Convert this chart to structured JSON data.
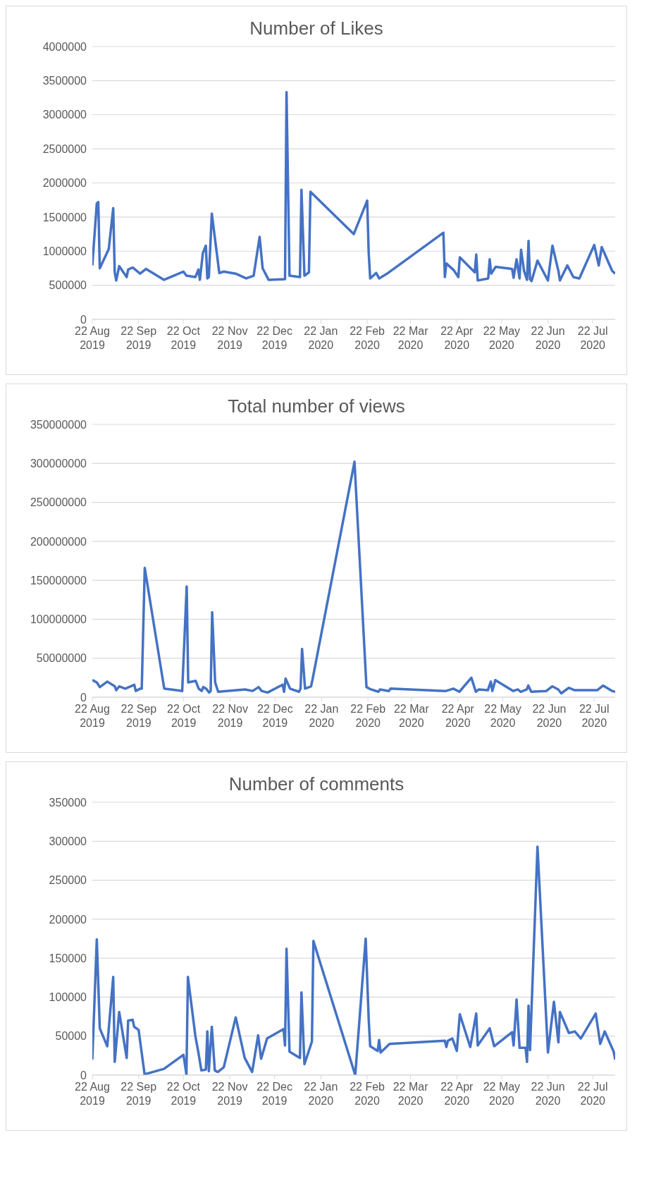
{
  "chart_data": [
    {
      "type": "line",
      "title": "Number of Likes",
      "grid": "y",
      "marker": "none",
      "line_style": "solid",
      "xlim": [
        "2019-08-22",
        "2020-08-06"
      ],
      "xticks": [
        {
          "value": "2019-08-22",
          "label": "22 Aug 2019"
        },
        {
          "value": "2019-09-22",
          "label": "22 Sep 2019"
        },
        {
          "value": "2019-10-22",
          "label": "22 Oct 2019"
        },
        {
          "value": "2019-11-22",
          "label": "22 Nov 2019"
        },
        {
          "value": "2019-12-22",
          "label": "22 Dec 2019"
        },
        {
          "value": "2020-01-22",
          "label": "22 Jan 2020"
        },
        {
          "value": "2020-02-22",
          "label": "22 Feb 2020"
        },
        {
          "value": "2020-03-22",
          "label": "22 Mar 2020"
        },
        {
          "value": "2020-04-22",
          "label": "22 Apr 2020"
        },
        {
          "value": "2020-05-22",
          "label": "22 May 2020"
        },
        {
          "value": "2020-06-22",
          "label": "22 Jun 2020"
        },
        {
          "value": "2020-07-22",
          "label": "22 Jul 2020"
        }
      ],
      "ylim": [
        0,
        4000000
      ],
      "yticks": [
        0,
        500000,
        1000000,
        1500000,
        2000000,
        2500000,
        3000000,
        3500000,
        4000000
      ],
      "x": [
        "2019-08-22",
        "2019-08-25",
        "2019-08-26",
        "2019-08-27",
        "2019-09-02",
        "2019-09-05",
        "2019-09-06",
        "2019-09-07",
        "2019-09-09",
        "2019-09-14",
        "2019-09-15",
        "2019-09-18",
        "2019-09-23",
        "2019-09-27",
        "2019-10-09",
        "2019-10-22",
        "2019-10-24",
        "2019-10-30",
        "2019-11-01",
        "2019-11-02",
        "2019-11-04",
        "2019-11-06",
        "2019-11-07",
        "2019-11-08",
        "2019-11-10",
        "2019-11-15",
        "2019-11-18",
        "2019-11-26",
        "2019-12-03",
        "2019-12-08",
        "2019-12-12",
        "2019-12-14",
        "2019-12-18",
        "2019-12-29",
        "2019-12-30",
        "2020-01-01",
        "2020-01-08",
        "2020-01-09",
        "2020-01-11",
        "2020-01-14",
        "2020-01-15",
        "2020-02-13",
        "2020-02-22",
        "2020-02-23",
        "2020-02-24",
        "2020-02-28",
        "2020-03-01",
        "2020-03-07",
        "2020-04-13",
        "2020-04-14",
        "2020-04-15",
        "2020-04-20",
        "2020-04-23",
        "2020-04-24",
        "2020-05-04",
        "2020-05-05",
        "2020-05-06",
        "2020-05-13",
        "2020-05-14",
        "2020-05-15",
        "2020-05-18",
        "2020-05-29",
        "2020-05-30",
        "2020-06-01",
        "2020-06-03",
        "2020-06-04",
        "2020-06-06",
        "2020-06-08",
        "2020-06-09",
        "2020-06-10",
        "2020-06-11",
        "2020-06-15",
        "2020-06-22",
        "2020-06-25",
        "2020-06-29",
        "2020-06-30",
        "2020-07-05",
        "2020-07-09",
        "2020-07-13",
        "2020-07-23",
        "2020-07-26",
        "2020-07-28",
        "2020-08-04",
        "2020-08-06"
      ],
      "series": [
        {
          "color": "#4472c4",
          "values": [
            790000,
            1700000,
            1720000,
            750000,
            1030000,
            1630000,
            690000,
            570000,
            780000,
            620000,
            730000,
            760000,
            670000,
            740000,
            580000,
            700000,
            640000,
            620000,
            730000,
            580000,
            970000,
            1080000,
            600000,
            620000,
            1550000,
            680000,
            700000,
            670000,
            600000,
            640000,
            1210000,
            750000,
            580000,
            590000,
            3330000,
            640000,
            620000,
            1900000,
            640000,
            690000,
            1870000,
            1250000,
            1740000,
            980000,
            600000,
            680000,
            600000,
            680000,
            1270000,
            620000,
            820000,
            720000,
            620000,
            910000,
            690000,
            950000,
            570000,
            600000,
            880000,
            670000,
            770000,
            740000,
            610000,
            880000,
            600000,
            1020000,
            710000,
            580000,
            1150000,
            590000,
            560000,
            860000,
            570000,
            1080000,
            710000,
            570000,
            790000,
            620000,
            600000,
            1090000,
            790000,
            1060000,
            710000,
            670000
          ]
        }
      ]
    },
    {
      "type": "line",
      "title": "Total number of views",
      "grid": "y",
      "marker": "none",
      "line_style": "solid",
      "xlim": [
        "2019-08-22",
        "2020-08-05"
      ],
      "xticks": [
        {
          "value": "2019-08-22",
          "label": "22 Aug 2019"
        },
        {
          "value": "2019-09-22",
          "label": "22 Sep 2019"
        },
        {
          "value": "2019-10-22",
          "label": "22 Oct 2019"
        },
        {
          "value": "2019-11-22",
          "label": "22 Nov 2019"
        },
        {
          "value": "2019-12-22",
          "label": "22 Dec 2019"
        },
        {
          "value": "2020-01-22",
          "label": "22 Jan 2020"
        },
        {
          "value": "2020-02-22",
          "label": "22 Feb 2020"
        },
        {
          "value": "2020-03-22",
          "label": "22 Mar 2020"
        },
        {
          "value": "2020-04-22",
          "label": "22 Apr 2020"
        },
        {
          "value": "2020-05-22",
          "label": "22 May 2020"
        },
        {
          "value": "2020-06-22",
          "label": "22 Jun 2020"
        },
        {
          "value": "2020-07-22",
          "label": "22 Jul 2020"
        }
      ],
      "ylim": [
        0,
        350000000
      ],
      "yticks": [
        0,
        50000000,
        100000000,
        150000000,
        200000000,
        250000000,
        300000000,
        350000000
      ],
      "x": [
        "2019-08-22",
        "2019-08-25",
        "2019-08-27",
        "2019-09-01",
        "2019-09-06",
        "2019-09-07",
        "2019-09-09",
        "2019-09-13",
        "2019-09-19",
        "2019-09-20",
        "2019-09-23",
        "2019-09-24",
        "2019-09-26",
        "2019-10-09",
        "2019-10-21",
        "2019-10-24",
        "2019-10-25",
        "2019-10-30",
        "2019-11-01",
        "2019-11-03",
        "2019-11-04",
        "2019-11-06",
        "2019-11-08",
        "2019-11-09",
        "2019-11-10",
        "2019-11-12",
        "2019-11-14",
        "2019-12-02",
        "2019-12-07",
        "2019-12-11",
        "2019-12-13",
        "2019-12-17",
        "2019-12-27",
        "2019-12-28",
        "2019-12-29",
        "2020-01-01",
        "2020-01-07",
        "2020-01-08",
        "2020-01-09",
        "2020-01-11",
        "2020-01-15",
        "2020-01-16",
        "2020-02-13",
        "2020-02-21",
        "2020-02-24",
        "2020-02-29",
        "2020-03-01",
        "2020-03-07",
        "2020-03-08",
        "2020-04-14",
        "2020-04-19",
        "2020-04-23",
        "2020-05-01",
        "2020-05-04",
        "2020-05-06",
        "2020-05-12",
        "2020-05-14",
        "2020-05-15",
        "2020-05-17",
        "2020-05-29",
        "2020-06-01",
        "2020-06-03",
        "2020-06-07",
        "2020-06-08",
        "2020-06-10",
        "2020-06-20",
        "2020-06-24",
        "2020-06-28",
        "2020-06-30",
        "2020-07-05",
        "2020-07-09",
        "2020-07-24",
        "2020-07-28",
        "2020-08-03",
        "2020-08-05"
      ],
      "series": [
        {
          "color": "#4472c4",
          "values": [
            22000000,
            19000000,
            13000000,
            20000000,
            14000000,
            9000000,
            14000000,
            11000000,
            16000000,
            8000000,
            11000000,
            11000000,
            166000000,
            11000000,
            8000000,
            142000000,
            19000000,
            21000000,
            11000000,
            8000000,
            13000000,
            11000000,
            6000000,
            8000000,
            109000000,
            19000000,
            7000000,
            10000000,
            8000000,
            13000000,
            8000000,
            6000000,
            16000000,
            7000000,
            24000000,
            11000000,
            7000000,
            11000000,
            62000000,
            11000000,
            14000000,
            23000000,
            302000000,
            13000000,
            10000000,
            7000000,
            10000000,
            8000000,
            11000000,
            8000000,
            11000000,
            7000000,
            25000000,
            7000000,
            10000000,
            9000000,
            20000000,
            8000000,
            22000000,
            8000000,
            10000000,
            7000000,
            10000000,
            15000000,
            7000000,
            8000000,
            14000000,
            10000000,
            5000000,
            12000000,
            9000000,
            9000000,
            15000000,
            8000000,
            7000000
          ]
        }
      ]
    },
    {
      "type": "line",
      "title": "Number of comments",
      "grid": "y",
      "marker": "none",
      "line_style": "solid",
      "xlim": [
        "2019-08-22",
        "2020-08-06"
      ],
      "xticks": [
        {
          "value": "2019-08-22",
          "label": "22 Aug 2019"
        },
        {
          "value": "2019-09-22",
          "label": "22 Sep 2019"
        },
        {
          "value": "2019-10-22",
          "label": "22 Oct 2019"
        },
        {
          "value": "2019-11-22",
          "label": "22 Nov 2019"
        },
        {
          "value": "2019-12-22",
          "label": "22 Dec 2019"
        },
        {
          "value": "2020-01-22",
          "label": "22 Jan 2020"
        },
        {
          "value": "2020-02-22",
          "label": "22 Feb 2020"
        },
        {
          "value": "2020-03-22",
          "label": "22 Mar 2020"
        },
        {
          "value": "2020-04-22",
          "label": "22 Apr 2020"
        },
        {
          "value": "2020-05-22",
          "label": "22 May 2020"
        },
        {
          "value": "2020-06-22",
          "label": "22 Jun 2020"
        },
        {
          "value": "2020-07-22",
          "label": "22 Jul 2020"
        }
      ],
      "ylim": [
        0,
        350000
      ],
      "yticks": [
        0,
        50000,
        100000,
        150000,
        200000,
        250000,
        300000,
        350000
      ],
      "x": [
        "2019-08-22",
        "2019-08-25",
        "2019-08-27",
        "2019-09-01",
        "2019-09-05",
        "2019-09-06",
        "2019-09-09",
        "2019-09-14",
        "2019-09-15",
        "2019-09-18",
        "2019-09-19",
        "2019-09-22",
        "2019-09-26",
        "2019-10-09",
        "2019-10-22",
        "2019-10-24",
        "2019-10-25",
        "2019-10-30",
        "2019-11-01",
        "2019-11-03",
        "2019-11-06",
        "2019-11-07",
        "2019-11-08",
        "2019-11-10",
        "2019-11-12",
        "2019-11-14",
        "2019-11-18",
        "2019-11-26",
        "2019-12-02",
        "2019-12-07",
        "2019-12-11",
        "2019-12-13",
        "2019-12-17",
        "2019-12-28",
        "2019-12-29",
        "2019-12-30",
        "2020-01-01",
        "2020-01-07",
        "2020-01-08",
        "2020-01-09",
        "2020-01-11",
        "2020-01-16",
        "2020-01-17",
        "2020-02-14",
        "2020-02-21",
        "2020-02-23",
        "2020-02-24",
        "2020-02-29",
        "2020-03-01",
        "2020-03-02",
        "2020-03-08",
        "2020-04-14",
        "2020-04-15",
        "2020-04-16",
        "2020-04-19",
        "2020-04-22",
        "2020-04-24",
        "2020-05-01",
        "2020-05-05",
        "2020-05-06",
        "2020-05-14",
        "2020-05-17",
        "2020-05-29",
        "2020-05-30",
        "2020-06-01",
        "2020-06-03",
        "2020-06-07",
        "2020-06-08",
        "2020-06-09",
        "2020-06-10",
        "2020-06-15",
        "2020-06-22",
        "2020-06-26",
        "2020-06-29",
        "2020-06-30",
        "2020-07-06",
        "2020-07-10",
        "2020-07-14",
        "2020-07-24",
        "2020-07-27",
        "2020-07-30",
        "2020-08-05",
        "2020-08-06"
      ],
      "series": [
        {
          "color": "#4472c4",
          "values": [
            20000,
            174000,
            60000,
            37000,
            126000,
            17000,
            81000,
            22000,
            70000,
            71000,
            62000,
            58000,
            1000,
            8000,
            26000,
            1000,
            126000,
            50000,
            29000,
            6000,
            7000,
            56000,
            5000,
            62000,
            6000,
            4000,
            10000,
            74000,
            22000,
            4000,
            51000,
            21000,
            47000,
            59000,
            38000,
            162000,
            30000,
            23000,
            22000,
            106000,
            14000,
            43000,
            172000,
            0,
            175000,
            72000,
            37000,
            31000,
            45000,
            29000,
            40000,
            44000,
            36000,
            44000,
            47000,
            31000,
            78000,
            36000,
            79000,
            38000,
            60000,
            37000,
            55000,
            38000,
            97000,
            35000,
            35000,
            17000,
            89000,
            32000,
            293000,
            29000,
            94000,
            42000,
            81000,
            54000,
            56000,
            47000,
            79000,
            40000,
            56000,
            30000,
            20000
          ]
        }
      ]
    }
  ]
}
